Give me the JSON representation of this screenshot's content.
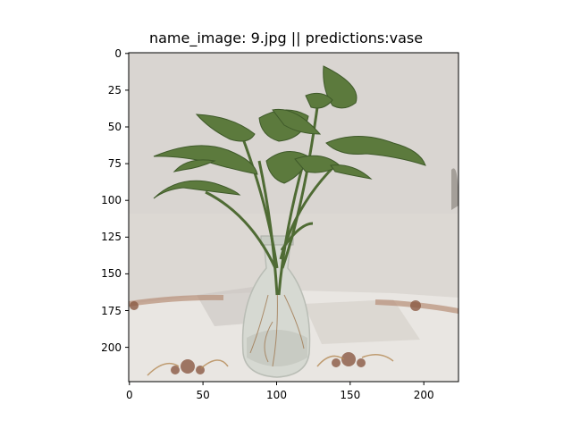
{
  "figure": {
    "title": "name_image: 9.jpg || predictions:vase",
    "image_file": "9.jpg",
    "prediction": "vase",
    "x_axis": {
      "ticks": [
        0,
        50,
        100,
        150,
        200
      ],
      "range": [
        0,
        224
      ]
    },
    "y_axis": {
      "ticks": [
        0,
        25,
        50,
        75,
        100,
        125,
        150,
        175,
        200
      ],
      "range": [
        0,
        224
      ]
    }
  },
  "colors": {
    "wall": "#dcd8d4",
    "table": "#e8e4e0",
    "leaf": "#5d7a3e",
    "leaf_dark": "#3f5a2a",
    "glass": "#cfd3cc",
    "lace_brown": "#8b5a44"
  }
}
